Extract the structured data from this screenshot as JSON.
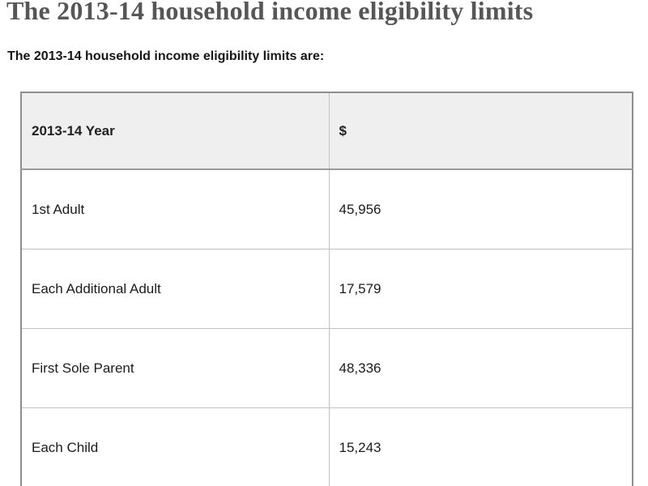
{
  "page": {
    "title": "The 2013-14 household income eligibility limits",
    "intro": "The 2013-14 household income eligibility limits are:"
  },
  "table": {
    "headers": {
      "year": "2013-14 Year",
      "amount": "$"
    },
    "rows": [
      {
        "label": "1st Adult",
        "amount": "45,956"
      },
      {
        "label": "Each Additional Adult",
        "amount": "17,579"
      },
      {
        "label": "First Sole Parent",
        "amount": "48,336"
      },
      {
        "label": "Each Child",
        "amount": "15,243"
      }
    ]
  },
  "colors": {
    "title_text": "#565656",
    "body_text": "#1c1c1c",
    "header_row_background": "#eeefee",
    "outer_border": "#8e8e8e",
    "cell_border": "#c2c2c2"
  }
}
